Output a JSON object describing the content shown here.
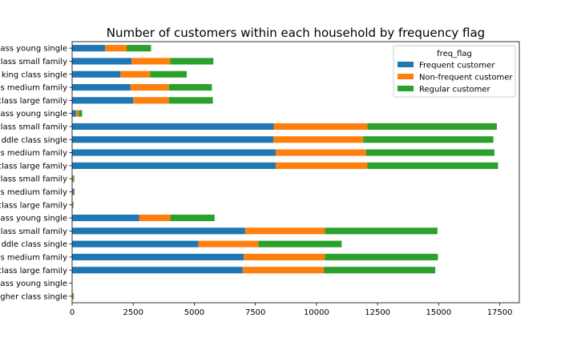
{
  "chart_data": {
    "type": "bar",
    "orientation": "horizontal",
    "stacked": true,
    "title": "Number of customers within each household by frequency flag",
    "xlabel": "",
    "ylabel": "",
    "xlim": [
      0,
      18300
    ],
    "xticks": [
      0,
      2500,
      5000,
      7500,
      10000,
      12500,
      15000,
      17500
    ],
    "xtick_labels": [
      "0",
      "2500",
      "5000",
      "7500",
      "10000",
      "12500",
      "15000",
      "17500"
    ],
    "grid": false,
    "legend": {
      "title": "freq_flag",
      "position": "top-right"
    },
    "categories": [
      "class young single",
      "class small family",
      "king class single",
      "s medium family",
      "class large family",
      "ass young single",
      "class small family",
      "ddle class single",
      "s medium family",
      "class large family",
      "class small family",
      "s medium family",
      "class large family",
      "class young single",
      "class small family",
      "ddle class single",
      "s medium family",
      "class large family",
      "class young single",
      "gher class single"
    ],
    "series": [
      {
        "name": "Frequent customer",
        "color": "#1f77b4",
        "values": [
          1350,
          2430,
          1980,
          2390,
          2500,
          160,
          8250,
          8230,
          8330,
          8330,
          30,
          60,
          20,
          2750,
          7080,
          5170,
          7020,
          6980,
          0,
          20
        ]
      },
      {
        "name": "Non-frequent customer",
        "color": "#ff7f0e",
        "values": [
          880,
          1580,
          1210,
          1570,
          1460,
          110,
          3830,
          3680,
          3700,
          3750,
          30,
          20,
          20,
          1270,
          3260,
          2450,
          3320,
          3320,
          0,
          20
        ]
      },
      {
        "name": "Regular customer",
        "color": "#2ca02c",
        "values": [
          1000,
          1770,
          1500,
          1760,
          1800,
          140,
          5300,
          5330,
          5250,
          5350,
          30,
          20,
          20,
          1810,
          4610,
          3410,
          4630,
          4560,
          0,
          30
        ]
      }
    ]
  }
}
